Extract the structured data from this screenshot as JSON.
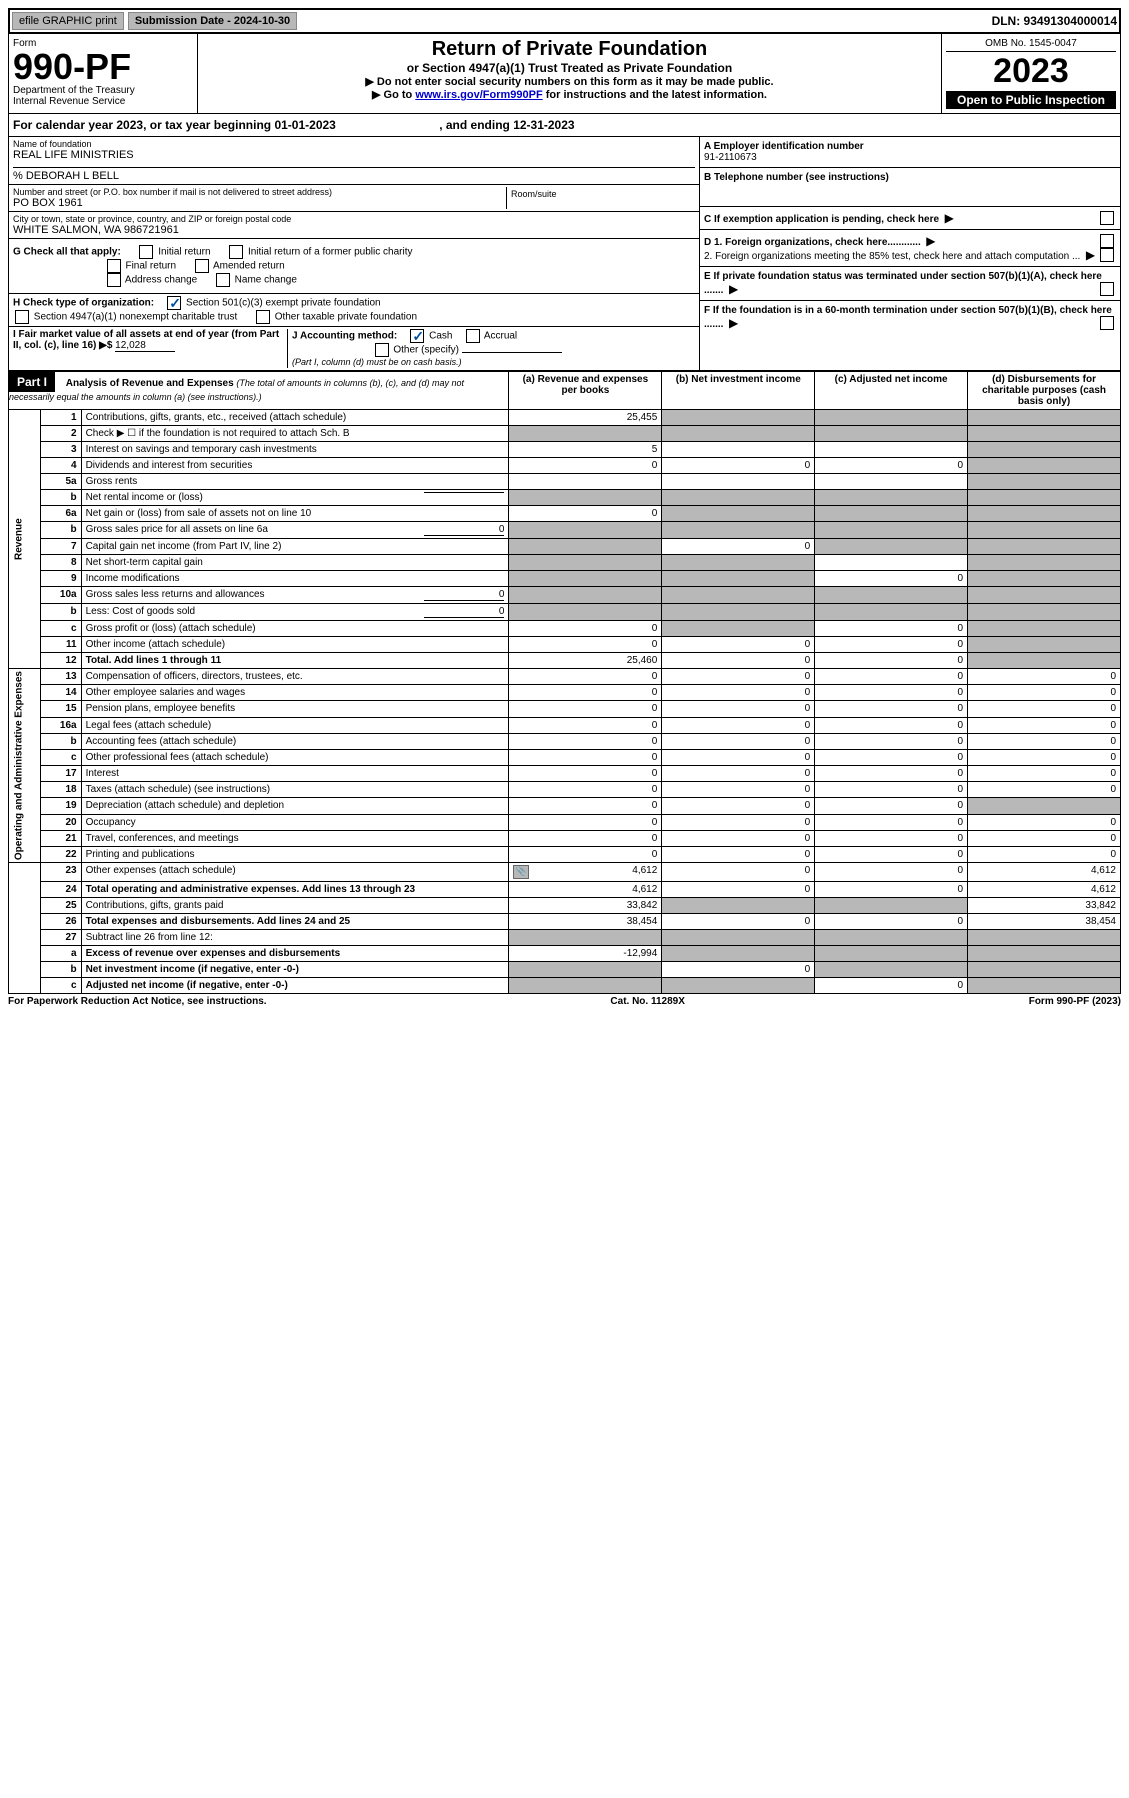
{
  "top_bar": {
    "efile": "efile GRAPHIC print",
    "sub_date": "Submission Date - 2024-10-30",
    "dln": "DLN: 93491304000014"
  },
  "header": {
    "form_label": "Form",
    "form_num": "990-PF",
    "dept": "Department of the Treasury\nInternal Revenue Service",
    "title": "Return of Private Foundation",
    "subtitle": "or Section 4947(a)(1) Trust Treated as Private Foundation",
    "instr1": "▶ Do not enter social security numbers on this form as it may be made public.",
    "instr2_pre": "▶ Go to ",
    "instr2_link": "www.irs.gov/Form990PF",
    "instr2_post": " for instructions and the latest information.",
    "omb": "OMB No. 1545-0047",
    "year": "2023",
    "inspection": "Open to Public Inspection"
  },
  "cal_year": {
    "text_pre": "For calendar year 2023, or tax year beginning ",
    "begin": "01-01-2023",
    "text_mid": " , and ending ",
    "end": "12-31-2023"
  },
  "info": {
    "name_label": "Name of foundation",
    "name": "REAL LIFE MINISTRIES",
    "care_of": "% DEBORAH L BELL",
    "addr_label": "Number and street (or P.O. box number if mail is not delivered to street address)",
    "addr": "PO BOX 1961",
    "room_label": "Room/suite",
    "city_label": "City or town, state or province, country, and ZIP or foreign postal code",
    "city": "WHITE SALMON, WA  986721961",
    "a_label": "A Employer identification number",
    "a_val": "91-2110673",
    "b_label": "B Telephone number (see instructions)",
    "c_label": "C If exemption application is pending, check here",
    "d1_label": "D 1. Foreign organizations, check here............",
    "d2_label": "2. Foreign organizations meeting the 85% test, check here and attach computation ...",
    "e_label": "E If private foundation status was terminated under section 507(b)(1)(A), check here .......",
    "f_label": "F If the foundation is in a 60-month termination under section 507(b)(1)(B), check here .......",
    "g_label": "G Check all that apply:",
    "g_opts": [
      "Initial return",
      "Initial return of a former public charity",
      "Final return",
      "Amended return",
      "Address change",
      "Name change"
    ],
    "h_label": "H Check type of organization:",
    "h_opts": [
      "Section 501(c)(3) exempt private foundation",
      "Section 4947(a)(1) nonexempt charitable trust",
      "Other taxable private foundation"
    ],
    "i_label": "I Fair market value of all assets at end of year (from Part II, col. (c), line 16) ▶$",
    "i_val": "12,028",
    "j_label": "J Accounting method:",
    "j_opts": [
      "Cash",
      "Accrual",
      "Other (specify)"
    ],
    "j_note": "(Part I, column (d) must be on cash basis.)"
  },
  "part1": {
    "header": "Part I",
    "title": "Analysis of Revenue and Expenses",
    "title_note": "(The total of amounts in columns (b), (c), and (d) may not necessarily equal the amounts in column (a) (see instructions).)",
    "col_a": "(a) Revenue and expenses per books",
    "col_b": "(b) Net investment income",
    "col_c": "(c) Adjusted net income",
    "col_d": "(d) Disbursements for charitable purposes (cash basis only)",
    "side_revenue": "Revenue",
    "side_expenses": "Operating and Administrative Expenses"
  },
  "rows": [
    {
      "n": "1",
      "desc": "Contributions, gifts, grants, etc., received (attach schedule)",
      "a": "25,455",
      "b": "",
      "c": "",
      "d": "",
      "shade_b": true,
      "shade_c": true,
      "shade_d": true
    },
    {
      "n": "2",
      "desc": "Check ▶ ☐ if the foundation is not required to attach Sch. B",
      "a": "",
      "b": "",
      "c": "",
      "d": "",
      "shade_a": true,
      "shade_b": true,
      "shade_c": true,
      "shade_d": true
    },
    {
      "n": "3",
      "desc": "Interest on savings and temporary cash investments",
      "a": "5",
      "b": "",
      "c": "",
      "d": "",
      "shade_d": true
    },
    {
      "n": "4",
      "desc": "Dividends and interest from securities",
      "a": "0",
      "b": "0",
      "c": "0",
      "d": "",
      "shade_d": true
    },
    {
      "n": "5a",
      "desc": "Gross rents",
      "a": "",
      "b": "",
      "c": "",
      "d": "",
      "shade_d": true
    },
    {
      "n": "b",
      "desc": "Net rental income or (loss)",
      "a": "",
      "b": "",
      "c": "",
      "d": "",
      "shade_a": true,
      "shade_b": true,
      "shade_c": true,
      "shade_d": true,
      "inline_val": ""
    },
    {
      "n": "6a",
      "desc": "Net gain or (loss) from sale of assets not on line 10",
      "a": "0",
      "b": "",
      "c": "",
      "d": "",
      "shade_b": true,
      "shade_c": true,
      "shade_d": true
    },
    {
      "n": "b",
      "desc": "Gross sales price for all assets on line 6a",
      "a": "",
      "b": "",
      "c": "",
      "d": "",
      "inline_val": "0",
      "shade_a": true,
      "shade_b": true,
      "shade_c": true,
      "shade_d": true
    },
    {
      "n": "7",
      "desc": "Capital gain net income (from Part IV, line 2)",
      "a": "",
      "b": "0",
      "c": "",
      "d": "",
      "shade_a": true,
      "shade_c": true,
      "shade_d": true
    },
    {
      "n": "8",
      "desc": "Net short-term capital gain",
      "a": "",
      "b": "",
      "c": "",
      "d": "",
      "shade_a": true,
      "shade_b": true,
      "shade_d": true
    },
    {
      "n": "9",
      "desc": "Income modifications",
      "a": "",
      "b": "",
      "c": "0",
      "d": "",
      "shade_a": true,
      "shade_b": true,
      "shade_d": true
    },
    {
      "n": "10a",
      "desc": "Gross sales less returns and allowances",
      "a": "",
      "b": "",
      "c": "",
      "d": "",
      "inline_val": "0",
      "shade_a": true,
      "shade_b": true,
      "shade_c": true,
      "shade_d": true
    },
    {
      "n": "b",
      "desc": "Less: Cost of goods sold",
      "a": "",
      "b": "",
      "c": "",
      "d": "",
      "inline_val": "0",
      "shade_a": true,
      "shade_b": true,
      "shade_c": true,
      "shade_d": true
    },
    {
      "n": "c",
      "desc": "Gross profit or (loss) (attach schedule)",
      "a": "0",
      "b": "",
      "c": "0",
      "d": "",
      "shade_b": true,
      "shade_d": true
    },
    {
      "n": "11",
      "desc": "Other income (attach schedule)",
      "a": "0",
      "b": "0",
      "c": "0",
      "d": "",
      "shade_d": true
    },
    {
      "n": "12",
      "desc": "Total. Add lines 1 through 11",
      "a": "25,460",
      "b": "0",
      "c": "0",
      "d": "",
      "bold": true,
      "shade_d": true
    },
    {
      "n": "13",
      "desc": "Compensation of officers, directors, trustees, etc.",
      "a": "0",
      "b": "0",
      "c": "0",
      "d": "0"
    },
    {
      "n": "14",
      "desc": "Other employee salaries and wages",
      "a": "0",
      "b": "0",
      "c": "0",
      "d": "0"
    },
    {
      "n": "15",
      "desc": "Pension plans, employee benefits",
      "a": "0",
      "b": "0",
      "c": "0",
      "d": "0"
    },
    {
      "n": "16a",
      "desc": "Legal fees (attach schedule)",
      "a": "0",
      "b": "0",
      "c": "0",
      "d": "0"
    },
    {
      "n": "b",
      "desc": "Accounting fees (attach schedule)",
      "a": "0",
      "b": "0",
      "c": "0",
      "d": "0"
    },
    {
      "n": "c",
      "desc": "Other professional fees (attach schedule)",
      "a": "0",
      "b": "0",
      "c": "0",
      "d": "0"
    },
    {
      "n": "17",
      "desc": "Interest",
      "a": "0",
      "b": "0",
      "c": "0",
      "d": "0"
    },
    {
      "n": "18",
      "desc": "Taxes (attach schedule) (see instructions)",
      "a": "0",
      "b": "0",
      "c": "0",
      "d": "0"
    },
    {
      "n": "19",
      "desc": "Depreciation (attach schedule) and depletion",
      "a": "0",
      "b": "0",
      "c": "0",
      "d": "",
      "shade_d": true
    },
    {
      "n": "20",
      "desc": "Occupancy",
      "a": "0",
      "b": "0",
      "c": "0",
      "d": "0"
    },
    {
      "n": "21",
      "desc": "Travel, conferences, and meetings",
      "a": "0",
      "b": "0",
      "c": "0",
      "d": "0"
    },
    {
      "n": "22",
      "desc": "Printing and publications",
      "a": "0",
      "b": "0",
      "c": "0",
      "d": "0"
    },
    {
      "n": "23",
      "desc": "Other expenses (attach schedule)",
      "a": "4,612",
      "b": "0",
      "c": "0",
      "d": "4,612",
      "has_icon": true
    },
    {
      "n": "24",
      "desc": "Total operating and administrative expenses. Add lines 13 through 23",
      "a": "4,612",
      "b": "0",
      "c": "0",
      "d": "4,612",
      "bold": true
    },
    {
      "n": "25",
      "desc": "Contributions, gifts, grants paid",
      "a": "33,842",
      "b": "",
      "c": "",
      "d": "33,842",
      "shade_b": true,
      "shade_c": true
    },
    {
      "n": "26",
      "desc": "Total expenses and disbursements. Add lines 24 and 25",
      "a": "38,454",
      "b": "0",
      "c": "0",
      "d": "38,454",
      "bold": true
    },
    {
      "n": "27",
      "desc": "Subtract line 26 from line 12:",
      "a": "",
      "b": "",
      "c": "",
      "d": "",
      "shade_a": true,
      "shade_b": true,
      "shade_c": true,
      "shade_d": true
    },
    {
      "n": "a",
      "desc": "Excess of revenue over expenses and disbursements",
      "a": "-12,994",
      "b": "",
      "c": "",
      "d": "",
      "bold": true,
      "shade_b": true,
      "shade_c": true,
      "shade_d": true
    },
    {
      "n": "b",
      "desc": "Net investment income (if negative, enter -0-)",
      "a": "",
      "b": "0",
      "c": "",
      "d": "",
      "bold": true,
      "shade_a": true,
      "shade_c": true,
      "shade_d": true
    },
    {
      "n": "c",
      "desc": "Adjusted net income (if negative, enter -0-)",
      "a": "",
      "b": "",
      "c": "0",
      "d": "",
      "bold": true,
      "shade_a": true,
      "shade_b": true,
      "shade_d": true
    }
  ],
  "footer": {
    "left": "For Paperwork Reduction Act Notice, see instructions.",
    "center": "Cat. No. 11289X",
    "right": "Form 990-PF (2023)"
  },
  "colors": {
    "shade": "#b8b8b8",
    "link": "#0000cc",
    "check": "#0050a0"
  }
}
